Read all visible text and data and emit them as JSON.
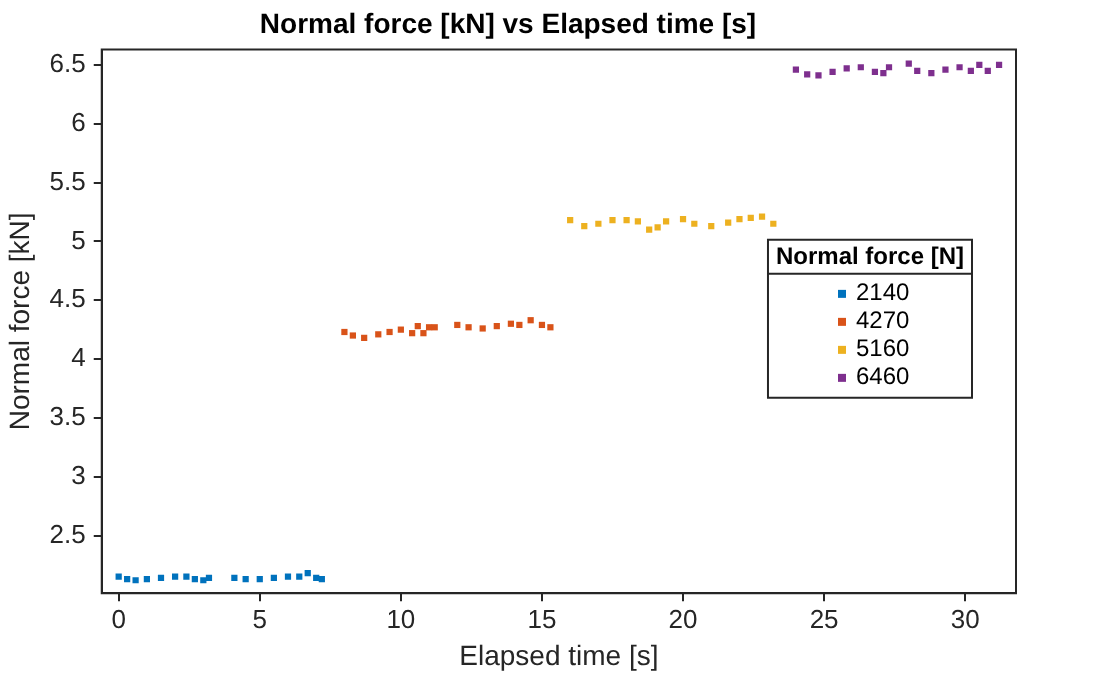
{
  "chart_data": {
    "type": "scatter",
    "title": "Normal force [kN] vs Elapsed time [s]",
    "xlabel": "Elapsed time [s]",
    "ylabel": "Normal force [kN]",
    "legend_title": "Normal force [N]",
    "legend": "right",
    "grid": false,
    "marker": "square",
    "xlim": [
      -0.6,
      31.8
    ],
    "xticks": [
      0,
      5,
      10,
      15,
      20,
      25,
      30
    ],
    "ylim": [
      2.01,
      6.63
    ],
    "yticks": [
      2.5,
      3,
      3.5,
      4,
      4.5,
      5,
      5.5,
      6,
      6.5
    ],
    "series": [
      {
        "name": "2140",
        "color": "#0072bd",
        "x": [
          0,
          0.3,
          0.6,
          1.0,
          1.5,
          2.0,
          2.4,
          2.7,
          3.0,
          3.2,
          4.1,
          4.5,
          5.0,
          5.5,
          6.0,
          6.4,
          6.7,
          7.0,
          7.2
        ],
        "values": [
          2.15,
          2.13,
          2.12,
          2.13,
          2.14,
          2.15,
          2.15,
          2.13,
          2.12,
          2.14,
          2.14,
          2.13,
          2.13,
          2.14,
          2.15,
          2.15,
          2.18,
          2.14,
          2.13
        ]
      },
      {
        "name": "4270",
        "color": "#d95319",
        "x": [
          8.0,
          8.3,
          8.7,
          9.2,
          9.6,
          10.0,
          10.4,
          10.6,
          10.8,
          11.0,
          11.2,
          12.0,
          12.4,
          12.9,
          13.4,
          13.9,
          14.2,
          14.6,
          15.0,
          15.3
        ],
        "values": [
          4.23,
          4.2,
          4.18,
          4.21,
          4.23,
          4.25,
          4.22,
          4.28,
          4.22,
          4.27,
          4.27,
          4.29,
          4.27,
          4.26,
          4.28,
          4.3,
          4.29,
          4.33,
          4.29,
          4.27
        ]
      },
      {
        "name": "5160",
        "color": "#edb120",
        "x": [
          16.0,
          16.5,
          17.0,
          17.5,
          18.0,
          18.4,
          18.8,
          19.1,
          19.4,
          20.0,
          20.4,
          21.0,
          21.6,
          22.0,
          22.4,
          22.8,
          23.2
        ],
        "values": [
          5.18,
          5.13,
          5.15,
          5.18,
          5.18,
          5.17,
          5.1,
          5.12,
          5.17,
          5.19,
          5.15,
          5.13,
          5.16,
          5.19,
          5.2,
          5.21,
          5.15
        ]
      },
      {
        "name": "6460",
        "color": "#7e2f8e",
        "x": [
          24.0,
          24.4,
          24.8,
          25.3,
          25.8,
          26.3,
          26.8,
          27.1,
          27.3,
          28.0,
          28.3,
          28.8,
          29.3,
          29.8,
          30.2,
          30.5,
          30.8,
          31.2
        ],
        "values": [
          6.46,
          6.42,
          6.41,
          6.44,
          6.47,
          6.48,
          6.44,
          6.43,
          6.48,
          6.51,
          6.45,
          6.43,
          6.46,
          6.48,
          6.45,
          6.5,
          6.45,
          6.5
        ]
      }
    ]
  }
}
